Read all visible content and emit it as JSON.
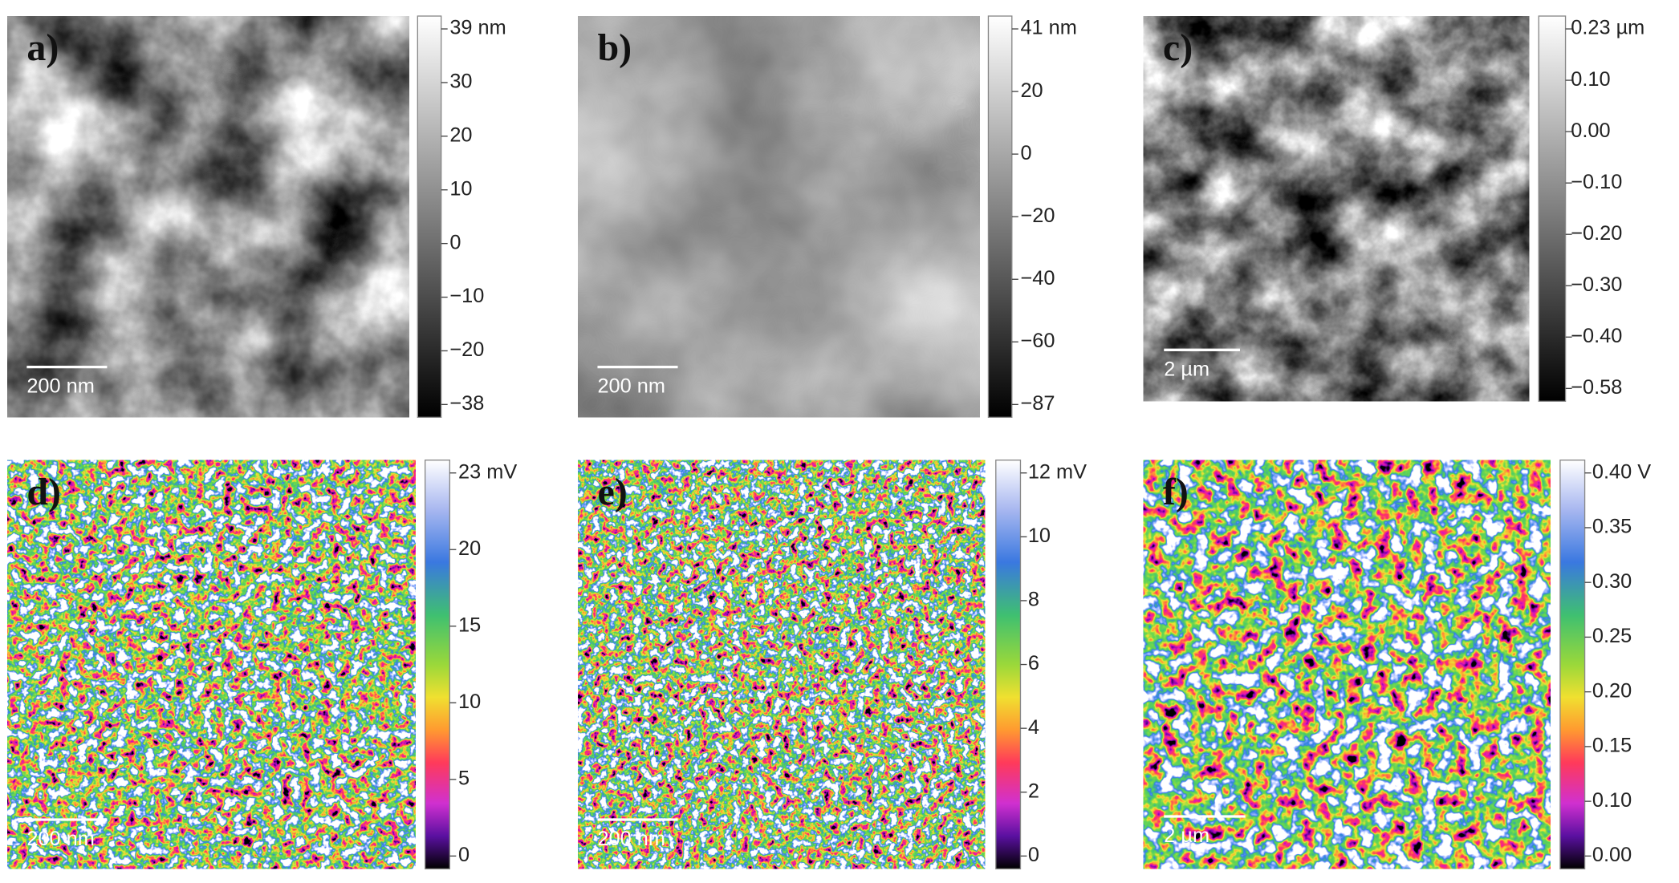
{
  "panels": [
    {
      "label": "a)",
      "scale_bar": "200 nm",
      "colormap": "gray",
      "colorbar_ticks": [
        "39 nm",
        "30",
        "20",
        "10",
        "0",
        "−10",
        "−20",
        "−38"
      ]
    },
    {
      "label": "b)",
      "scale_bar": "200 nm",
      "colormap": "gray",
      "colorbar_ticks": [
        "41 nm",
        "20",
        "0",
        "−20",
        "−40",
        "−60",
        "−87"
      ]
    },
    {
      "label": "c)",
      "scale_bar": "2 µm",
      "colormap": "gray",
      "colorbar_ticks": [
        "0.23 µm",
        "0.10",
        "0.00",
        "−0.10",
        "−0.20",
        "−0.30",
        "−0.40",
        "−0.58"
      ]
    },
    {
      "label": "d)",
      "scale_bar": "200 nm",
      "colormap": "rainbow",
      "colorbar_ticks": [
        "23 mV",
        "20",
        "15",
        "10",
        "5",
        "0"
      ]
    },
    {
      "label": "e)",
      "scale_bar": "200 nm",
      "colormap": "rainbow",
      "colorbar_ticks": [
        "12 mV",
        "10",
        "8",
        "6",
        "4",
        "2",
        "0"
      ]
    },
    {
      "label": "f)",
      "scale_bar": "2 µm",
      "colormap": "rainbow",
      "colorbar_ticks": [
        "0.40 V",
        "0.35",
        "0.30",
        "0.25",
        "0.20",
        "0.15",
        "0.10",
        "0.00"
      ]
    }
  ]
}
